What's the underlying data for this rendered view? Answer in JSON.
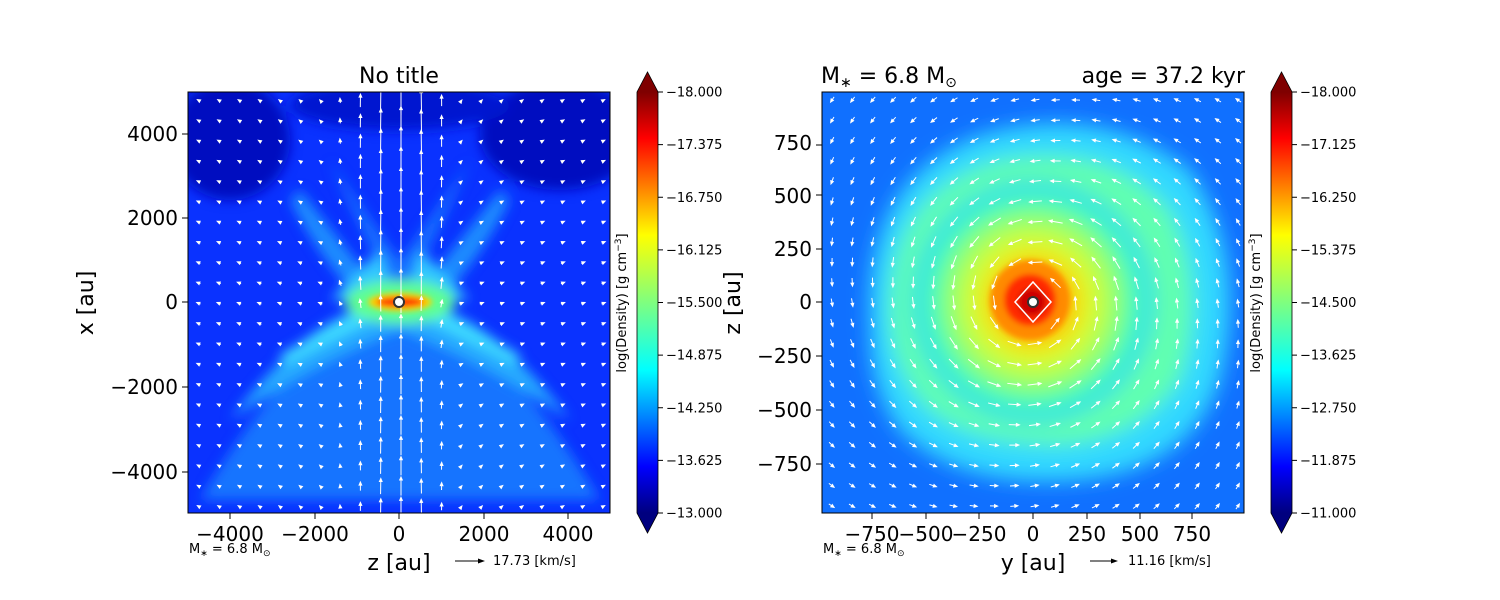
{
  "chart_data": [
    {
      "type": "heatmap",
      "title": "No title",
      "xlabel": "z [au]",
      "ylabel": "x [au]",
      "xlim": [
        -5000,
        5000
      ],
      "ylim": [
        -5000,
        5000
      ],
      "xticks": [
        -4000,
        -2000,
        0,
        2000,
        4000
      ],
      "yticks": [
        4000,
        2000,
        0,
        -2000,
        -4000
      ],
      "xtick_labels": [
        "−4000",
        "−2000",
        "0",
        "2000",
        "4000"
      ],
      "ytick_labels": [
        "4000",
        "2000",
        "0",
        "−2000",
        "−4000"
      ],
      "colorbar": {
        "label": "log(Density) [g cm",
        "label_exp": "−3",
        "label_close": "]",
        "range": [
          -18.0,
          -13.0
        ],
        "ticks": [
          -13.0,
          -13.625,
          -14.25,
          -14.875,
          -15.5,
          -16.125,
          -16.75,
          -17.375,
          -18.0
        ],
        "tick_labels": [
          "−13.000",
          "−13.625",
          "−14.250",
          "−14.875",
          "−15.500",
          "−16.125",
          "−16.750",
          "−17.375",
          "−18.000"
        ]
      },
      "annotation_mass": "M",
      "annotation_mass_sub": "∗",
      "annotation_mass_value": " = 6.8 M",
      "annotation_mass_sun": "⊙",
      "vector_key": "17.73 [km/s]",
      "colormap": "jet"
    },
    {
      "type": "heatmap",
      "title_left_main": "M",
      "title_left_sub": "∗",
      "title_left_value": " = 6.8 M",
      "title_left_sun": "⊙",
      "title_right": "age = 37.2 kyr",
      "xlabel": "y [au]",
      "ylabel": "z [au]",
      "xlim": [
        -960,
        960
      ],
      "ylim": [
        -960,
        960
      ],
      "xticks": [
        -750,
        -500,
        -250,
        0,
        250,
        500,
        750
      ],
      "yticks": [
        750,
        500,
        250,
        0,
        -250,
        -500,
        -750
      ],
      "xtick_labels": [
        "−750",
        "−500",
        "−250",
        "0",
        "250",
        "500",
        "750"
      ],
      "ytick_labels": [
        "750",
        "500",
        "250",
        "0",
        "−250",
        "−500",
        "−750"
      ],
      "colorbar": {
        "label": "log(Density) [g cm",
        "label_exp": "−3",
        "label_close": "]",
        "range": [
          -18.0,
          -11.0
        ],
        "ticks": [
          -11.0,
          -11.875,
          -12.75,
          -13.625,
          -14.5,
          -15.375,
          -16.25,
          -17.125,
          -18.0
        ],
        "tick_labels": [
          "−11.000",
          "−11.875",
          "−12.750",
          "−13.625",
          "−14.500",
          "−15.375",
          "−16.250",
          "−17.125",
          "−18.000"
        ]
      },
      "annotation_mass": "M",
      "annotation_mass_sub": "∗",
      "annotation_mass_value": " = 6.8 M",
      "annotation_mass_sun": "⊙",
      "vector_key": "11.16 [km/s]",
      "colormap": "jet"
    }
  ]
}
